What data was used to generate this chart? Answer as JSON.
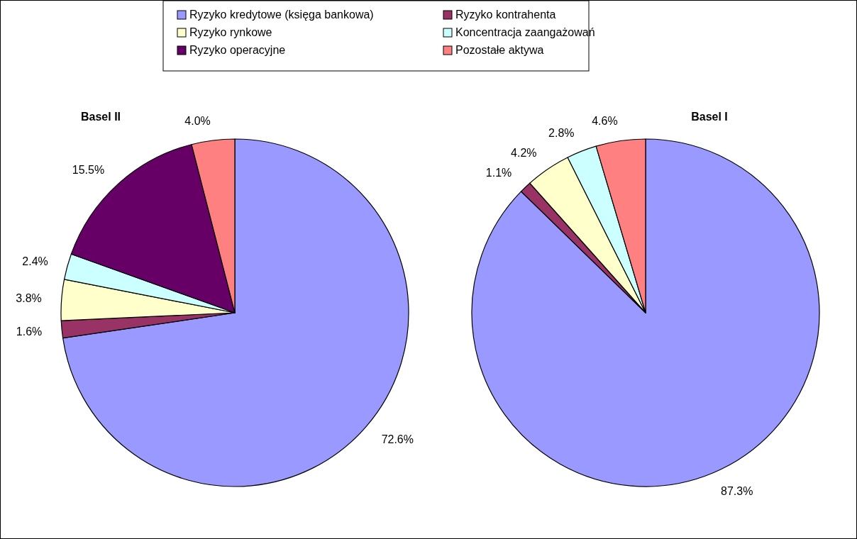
{
  "chart_data": {
    "type": "pie",
    "categories": [
      "Ryzyko kredytowe (księga bankowa)",
      "Ryzyko kontrahenta",
      "Ryzyko rynkowe",
      "Koncentracja zaangażowań",
      "Ryzyko operacyjne",
      "Pozostałe aktywa"
    ],
    "colors": [
      "#9999ff",
      "#993366",
      "#ffffcc",
      "#ccffff",
      "#660066",
      "#ff8080"
    ],
    "legend": "top",
    "series": [
      {
        "name": "Basel II",
        "values": [
          72.6,
          1.6,
          3.8,
          2.4,
          15.5,
          4.0
        ],
        "value_labels": [
          "72.6%",
          "1.6%",
          "3.8%",
          "2.4%",
          "15.5%",
          "4.0%"
        ]
      },
      {
        "name": "Basel I",
        "values": [
          87.3,
          1.1,
          4.2,
          2.8,
          null,
          4.6
        ],
        "value_labels": [
          "87.3%",
          "1.1%",
          "4.2%",
          "2.8%",
          null,
          "4.6%"
        ]
      }
    ]
  }
}
